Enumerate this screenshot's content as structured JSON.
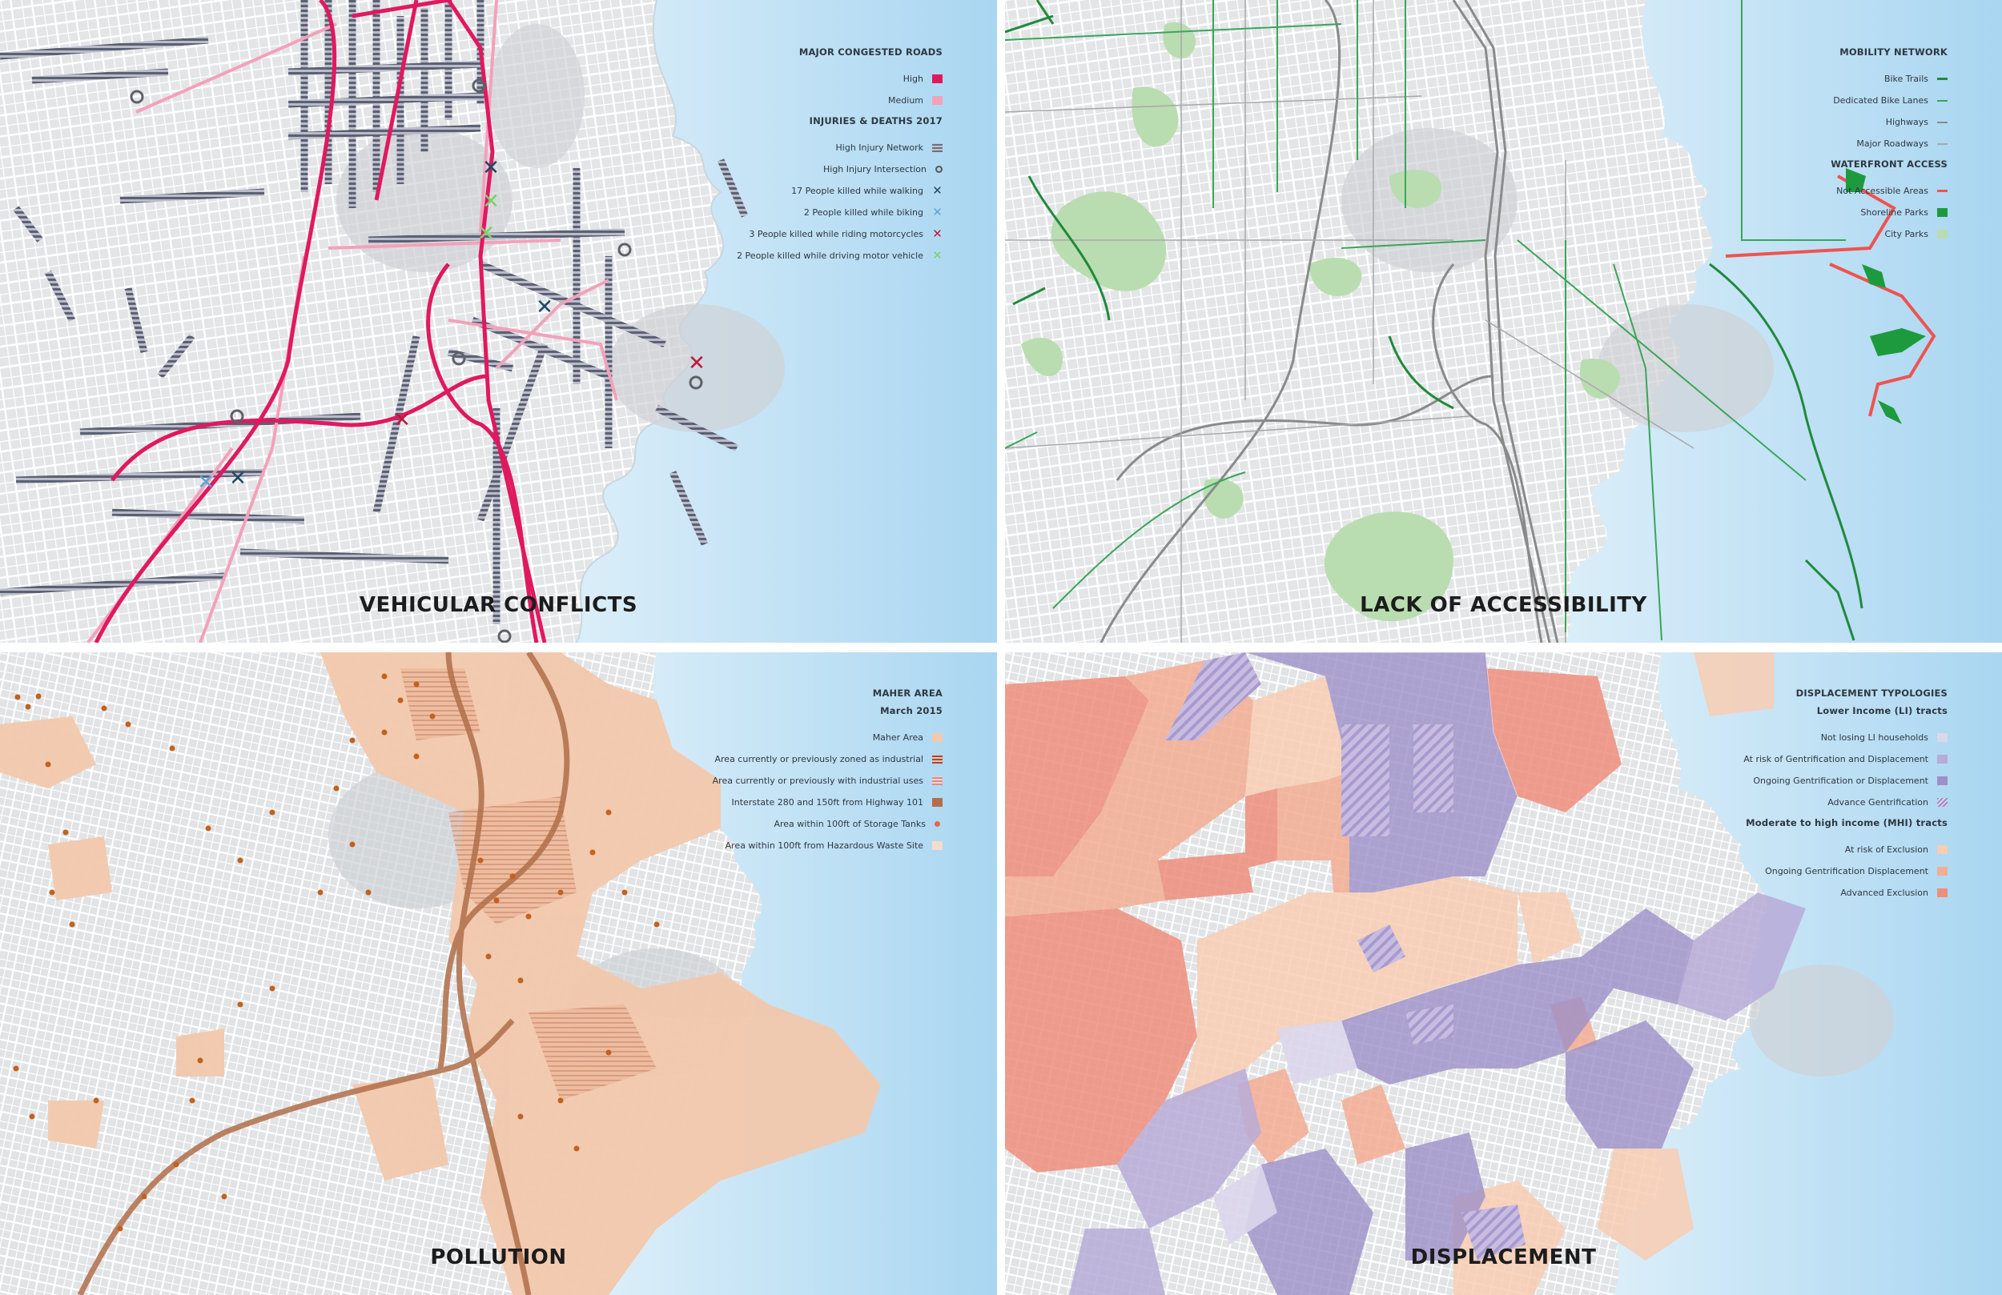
{
  "panels": {
    "vehicular": {
      "title": "VEHICULAR CONFLICTS",
      "legend": {
        "section1": "MAJOR CONGESTED ROADS",
        "high": "High",
        "medium": "Medium",
        "section2": "INJURIES & DEATHS 2017",
        "high_injury_network": "High Injury Network",
        "high_injury_intersection": "High Injury Intersection",
        "walking": "17 People killed while walking",
        "biking": "2 People killed while biking",
        "motorcycles": "3 People killed while riding motorcycles",
        "motor_vehicle": "2 People killed while driving motor vehicle"
      },
      "colors": {
        "high": "#e0195f",
        "medium": "#f3a1b9",
        "network": "#6b6f80",
        "walking": "#1d4a63",
        "biking": "#5aa6d6",
        "motorcycle": "#c0173c",
        "vehicle": "#7ad16e"
      }
    },
    "access": {
      "title": "LACK OF ACCESSIBILITY",
      "legend": {
        "section1": "MOBILITY NETWORK",
        "bike_trails": "Bike Trails",
        "bike_lanes": "Dedicated Bike Lanes",
        "highways": "Highways",
        "major_roadways": "Major Roadways",
        "section2": "WATERFRONT ACCESS",
        "not_accessible": "Not Accessible Areas",
        "shoreline_parks": "Shoreline Parks",
        "city_parks": "City Parks"
      },
      "colors": {
        "bike_trails": "#1f8a3c",
        "bike_lanes": "#3aa55a",
        "highways": "#8a8a8a",
        "roadways": "#a8a8a8",
        "not_accessible": "#ef5350",
        "shoreline": "#1e9a3e",
        "city_parks": "#b9ddb0"
      }
    },
    "pollution": {
      "title": "POLLUTION",
      "legend": {
        "section1": "MAHER AREA",
        "section1_sub": "March 2015",
        "maher": "Maher Area",
        "zoned_industrial": "Area currently or previously zoned as industrial",
        "industrial_uses": "Area currently or previously with industrial uses",
        "interstate": "Interstate 280 and 150ft from  Highway 101",
        "storage_tanks": "Area within 100ft of Storage Tanks",
        "hazardous_waste": "Area within 100ft  from Hazardous Waste Site"
      },
      "colors": {
        "maher": "#f2c8ac",
        "interstate": "#b06f4a",
        "tanks": "#e0684a",
        "dots": "#c2621f"
      }
    },
    "displacement": {
      "title": "DISPLACEMENT",
      "legend": {
        "section1": "DISPLACEMENT TYPOLOGIES",
        "section1_sub": "Lower Income (LI) tracts",
        "not_losing": "Not losing LI households",
        "at_risk_gentrification": "At risk of Gentrification and Displacement",
        "ongoing_gentrification": "Ongoing Gentrification or Displacement",
        "advance_gentrification": "Advance Gentrification",
        "section2": "Moderate to high income (MHI) tracts",
        "at_risk_exclusion": "At risk of Exclusion",
        "ongoing_displacement": "Ongoing Gentrification Displacement",
        "advanced_exclusion": "Advanced Exclusion"
      },
      "colors": {
        "not_losing": "#dcd6ec",
        "at_risk": "#b7acd8",
        "ongoing": "#9d90c8",
        "mhi_risk": "#f8cdb3",
        "mhi_ongoing": "#f3ad93",
        "advanced": "#ee8e7c"
      }
    }
  }
}
